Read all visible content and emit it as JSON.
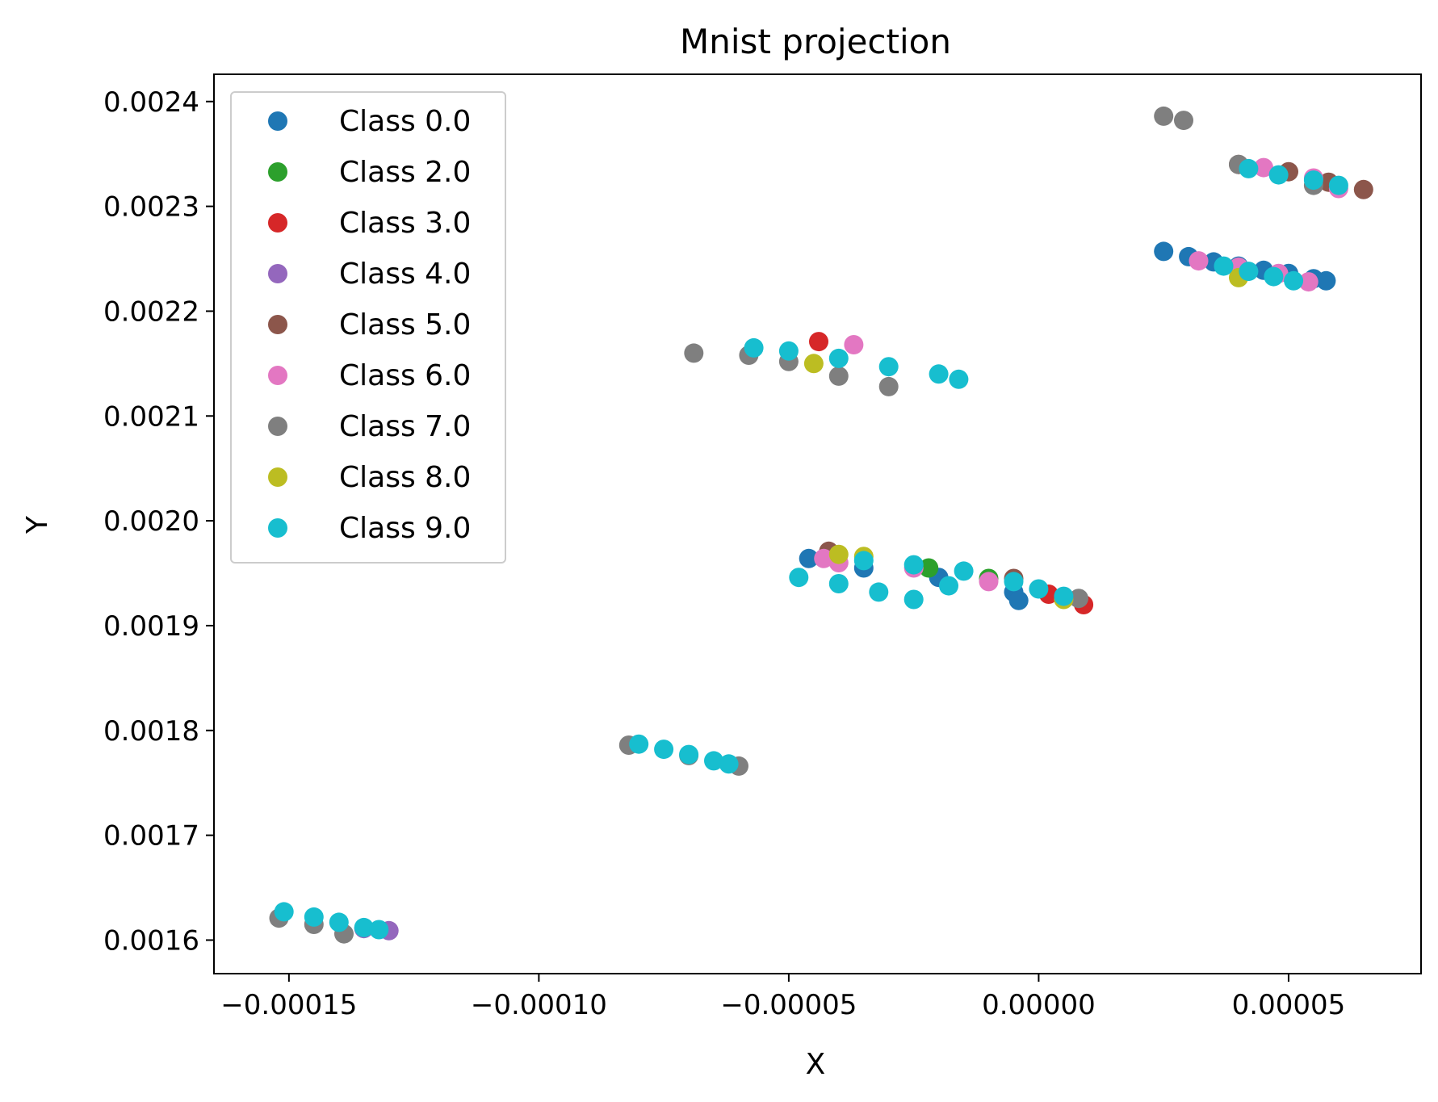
{
  "chart_data": {
    "type": "scatter",
    "title": "Mnist projection",
    "xlabel": "X",
    "ylabel": "Y",
    "xlim": [
      -0.000165,
      7.65e-05
    ],
    "ylim": [
      0.001568,
      0.002426
    ],
    "x_ticks": [
      {
        "value": -0.00015,
        "label": "−0.00015"
      },
      {
        "value": -0.0001,
        "label": "−0.00010"
      },
      {
        "value": -5e-05,
        "label": "−0.00005"
      },
      {
        "value": 0.0,
        "label": "0.00000"
      },
      {
        "value": 5e-05,
        "label": "0.00005"
      }
    ],
    "y_ticks": [
      {
        "value": 0.0016,
        "label": "0.0016"
      },
      {
        "value": 0.0017,
        "label": "0.0017"
      },
      {
        "value": 0.0018,
        "label": "0.0018"
      },
      {
        "value": 0.0019,
        "label": "0.0019"
      },
      {
        "value": 0.002,
        "label": "0.0020"
      },
      {
        "value": 0.0021,
        "label": "0.0021"
      },
      {
        "value": 0.0022,
        "label": "0.0022"
      },
      {
        "value": 0.0023,
        "label": "0.0023"
      },
      {
        "value": 0.0024,
        "label": "0.0024"
      }
    ],
    "grid": false,
    "legend_position": "upper-left",
    "series": [
      {
        "name": "Class 0.0",
        "color": "#1f77b4",
        "points": [
          [
            2.5e-05,
            0.002257
          ],
          [
            3e-05,
            0.002252
          ],
          [
            3.5e-05,
            0.002247
          ],
          [
            4e-05,
            0.002243
          ],
          [
            4.5e-05,
            0.002239
          ],
          [
            5e-05,
            0.002236
          ],
          [
            5.5e-05,
            0.002231
          ],
          [
            5.75e-05,
            0.002229
          ],
          [
            -4.6e-05,
            0.001964
          ],
          [
            -3.5e-05,
            0.001955
          ],
          [
            -2e-05,
            0.001946
          ],
          [
            -5e-06,
            0.001932
          ],
          [
            -4e-06,
            0.001924
          ]
        ]
      },
      {
        "name": "Class 2.0",
        "color": "#2ca02c",
        "points": [
          [
            -2.2e-05,
            0.001955
          ],
          [
            -1e-05,
            0.001945
          ]
        ]
      },
      {
        "name": "Class 3.0",
        "color": "#d62728",
        "points": [
          [
            -4.4e-05,
            0.002171
          ],
          [
            9e-06,
            0.00192
          ],
          [
            2e-06,
            0.00193
          ]
        ]
      },
      {
        "name": "Class 4.0",
        "color": "#9467bd",
        "points": [
          [
            -0.00013,
            0.001609
          ],
          [
            -0.000135,
            0.001611
          ]
        ]
      },
      {
        "name": "Class 5.0",
        "color": "#8c564b",
        "points": [
          [
            4e-05,
            0.00234
          ],
          [
            5e-05,
            0.002333
          ],
          [
            5.8e-05,
            0.002323
          ],
          [
            6.5e-05,
            0.002316
          ],
          [
            -4.2e-05,
            0.001971
          ],
          [
            -5e-06,
            0.001945
          ]
        ]
      },
      {
        "name": "Class 6.0",
        "color": "#e377c2",
        "points": [
          [
            -3.7e-05,
            0.002168
          ],
          [
            4.5e-05,
            0.002337
          ],
          [
            5.5e-05,
            0.002327
          ],
          [
            6e-05,
            0.002317
          ],
          [
            3.2e-05,
            0.002248
          ],
          [
            4e-05,
            0.002242
          ],
          [
            4.8e-05,
            0.002236
          ],
          [
            5.4e-05,
            0.002228
          ],
          [
            -4.3e-05,
            0.001964
          ],
          [
            -4e-05,
            0.00196
          ],
          [
            -1e-05,
            0.001942
          ],
          [
            -2.5e-05,
            0.001955
          ]
        ]
      },
      {
        "name": "Class 7.0",
        "color": "#7f7f7f",
        "points": [
          [
            2.5e-05,
            0.002386
          ],
          [
            2.9e-05,
            0.002382
          ],
          [
            -6.9e-05,
            0.00216
          ],
          [
            -5.8e-05,
            0.002158
          ],
          [
            -5e-05,
            0.002152
          ],
          [
            -4e-05,
            0.002138
          ],
          [
            -3e-05,
            0.002128
          ],
          [
            -8.2e-05,
            0.001786
          ],
          [
            -7e-05,
            0.001776
          ],
          [
            -6e-05,
            0.001766
          ],
          [
            -0.000152,
            0.001621
          ],
          [
            -0.000145,
            0.001615
          ],
          [
            -0.000139,
            0.001606
          ],
          [
            8e-06,
            0.001926
          ],
          [
            4e-05,
            0.00234
          ],
          [
            5.5e-05,
            0.00232
          ]
        ]
      },
      {
        "name": "Class 8.0",
        "color": "#bcbd22",
        "points": [
          [
            -4e-05,
            0.001968
          ],
          [
            -3.5e-05,
            0.001966
          ],
          [
            -4.5e-05,
            0.00215
          ],
          [
            5e-06,
            0.001925
          ],
          [
            4e-05,
            0.002232
          ]
        ]
      },
      {
        "name": "Class 9.0",
        "color": "#17becf",
        "points": [
          [
            -5.7e-05,
            0.002165
          ],
          [
            -5e-05,
            0.002162
          ],
          [
            -4e-05,
            0.002155
          ],
          [
            -3e-05,
            0.002147
          ],
          [
            -2e-05,
            0.00214
          ],
          [
            -1.6e-05,
            0.002135
          ],
          [
            4.2e-05,
            0.002336
          ],
          [
            4.8e-05,
            0.00233
          ],
          [
            5.5e-05,
            0.002325
          ],
          [
            6e-05,
            0.00232
          ],
          [
            3.7e-05,
            0.002243
          ],
          [
            4.2e-05,
            0.002238
          ],
          [
            4.7e-05,
            0.002233
          ],
          [
            5.1e-05,
            0.002229
          ],
          [
            -4.8e-05,
            0.001946
          ],
          [
            -4e-05,
            0.00194
          ],
          [
            -3.2e-05,
            0.001932
          ],
          [
            -2.5e-05,
            0.001925
          ],
          [
            -3.5e-05,
            0.001962
          ],
          [
            -2.5e-05,
            0.001958
          ],
          [
            -1.5e-05,
            0.001952
          ],
          [
            -5e-06,
            0.001942
          ],
          [
            0.0,
            0.001935
          ],
          [
            5e-06,
            0.001928
          ],
          [
            -1.8e-05,
            0.001938
          ],
          [
            -8e-05,
            0.001787
          ],
          [
            -7.5e-05,
            0.001782
          ],
          [
            -7e-05,
            0.001777
          ],
          [
            -6.5e-05,
            0.001771
          ],
          [
            -6.2e-05,
            0.001768
          ],
          [
            -0.000151,
            0.001627
          ],
          [
            -0.000145,
            0.001622
          ],
          [
            -0.00014,
            0.001617
          ],
          [
            -0.000135,
            0.001612
          ],
          [
            -0.000132,
            0.00161
          ]
        ]
      }
    ]
  }
}
